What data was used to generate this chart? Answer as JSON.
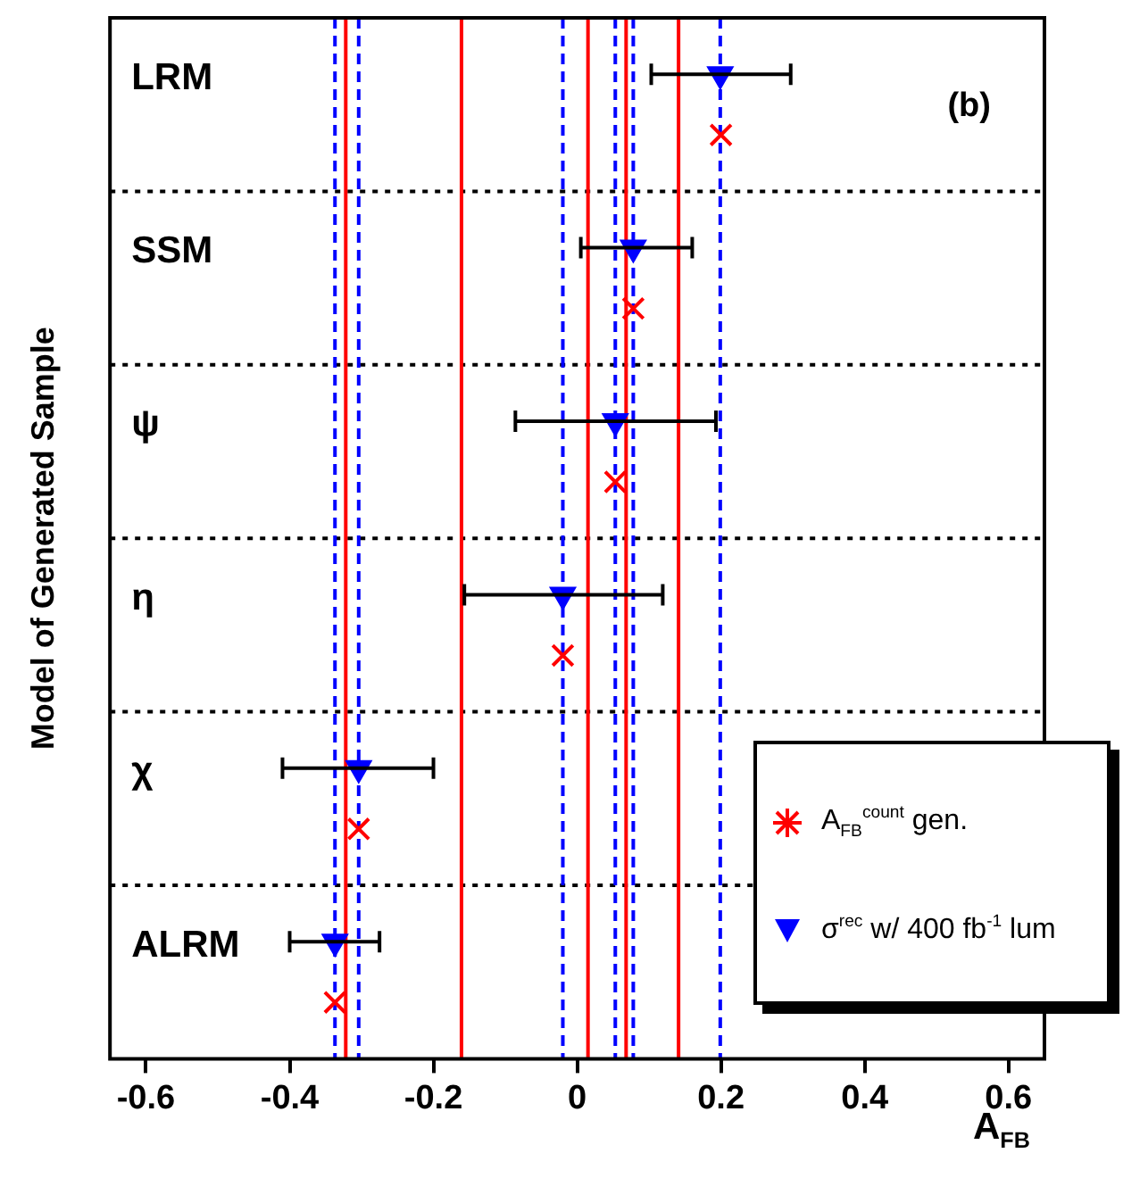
{
  "chart_data": {
    "type": "scatter",
    "orientation": "horizontal",
    "ylabel": "Model of Generated Sample",
    "xlabel": "A$_{FB}$",
    "annotations": [
      "(b)"
    ],
    "categories": [
      "LRM",
      "SSM",
      "ψ",
      "η",
      "χ",
      "ALRM"
    ],
    "xlim": [
      -0.65,
      0.65
    ],
    "xticks": [
      -0.6,
      -0.4,
      -0.2,
      0,
      0.2,
      0.4,
      0.6
    ],
    "grid": "y",
    "legend": "bottom right",
    "series": [
      {
        "name": "A$_{FB}$$^{count}$ gen.",
        "color": "#ff0000",
        "marker": "cross",
        "values": [
          0.2,
          0.078,
          0.053,
          -0.02,
          -0.304,
          -0.337
        ]
      },
      {
        "name": "σ$^{rec}$ w/ 400 fb$^{-1}$ lum",
        "color": "#0000ff",
        "marker": "triangle",
        "values": [
          0.199,
          0.078,
          0.053,
          -0.02,
          -0.304,
          -0.337
        ],
        "errors": [
          [
            0.103,
            0.297
          ],
          [
            0.005,
            0.16
          ],
          [
            -0.086,
            0.193
          ],
          [
            -0.157,
            0.119
          ],
          [
            -0.41,
            -0.2
          ],
          [
            -0.4,
            -0.275
          ]
        ]
      }
    ],
    "ref_lines": [
      {
        "axis": "x",
        "value": -0.322,
        "color": "#ff0000",
        "line_style": "solid"
      },
      {
        "axis": "x",
        "value": -0.161,
        "color": "#ff0000",
        "line_style": "solid"
      },
      {
        "axis": "x",
        "value": 0.015,
        "color": "#ff0000",
        "line_style": "solid"
      },
      {
        "axis": "x",
        "value": 0.068,
        "color": "#ff0000",
        "line_style": "solid"
      },
      {
        "axis": "x",
        "value": 0.141,
        "color": "#ff0000",
        "line_style": "solid"
      },
      {
        "axis": "x",
        "value": -0.337,
        "color": "#0000ff",
        "line_style": "dashed"
      },
      {
        "axis": "x",
        "value": -0.304,
        "color": "#0000ff",
        "line_style": "dashed"
      },
      {
        "axis": "x",
        "value": -0.02,
        "color": "#0000ff",
        "line_style": "dashed"
      },
      {
        "axis": "x",
        "value": 0.053,
        "color": "#0000ff",
        "line_style": "dashed"
      },
      {
        "axis": "x",
        "value": 0.078,
        "color": "#0000ff",
        "line_style": "dashed"
      },
      {
        "axis": "x",
        "value": 0.199,
        "color": "#0000ff",
        "line_style": "dashed"
      }
    ]
  }
}
